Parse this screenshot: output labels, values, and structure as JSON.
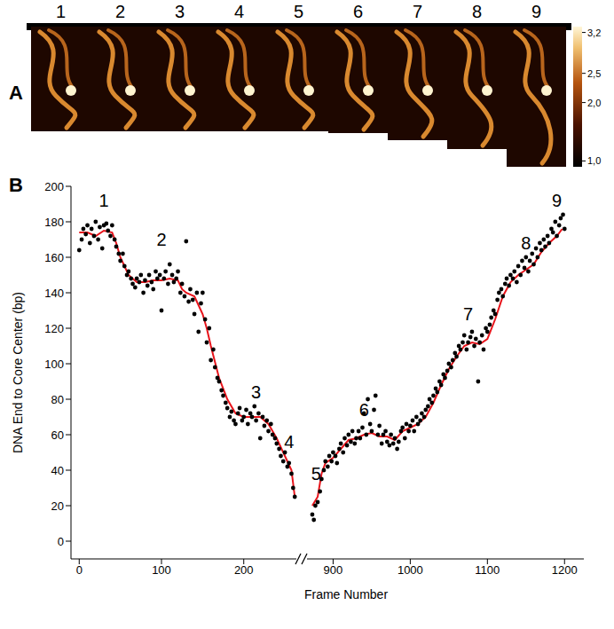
{
  "panel_a": {
    "label": "A",
    "frames": [
      "1",
      "2",
      "3",
      "4",
      "5",
      "6",
      "7",
      "8",
      "9"
    ],
    "colorbar": {
      "range": [
        0.9,
        3.3
      ],
      "ticks": [
        {
          "value": 3.2,
          "label": "3,2"
        },
        {
          "value": 2.5,
          "label": "2,5"
        },
        {
          "value": 2.0,
          "label": "2,0"
        },
        {
          "value": 1.0,
          "label": "1,0"
        }
      ]
    }
  },
  "panel_b_label": "B",
  "chart_data": [
    {
      "type": "scatter",
      "ylabel": "DNA End to Core Center (bp)",
      "xlim": [
        -10,
        265
      ],
      "xticks": [
        0,
        100,
        200
      ],
      "ylim": [
        -10,
        200
      ],
      "yticks": [
        0,
        20,
        40,
        60,
        80,
        100,
        120,
        140,
        160,
        180,
        200
      ],
      "series": [
        {
          "type": "scatter",
          "color": "#000000",
          "marker": "circle",
          "x": [
            0,
            3,
            5,
            8,
            10,
            13,
            15,
            18,
            20,
            23,
            25,
            28,
            30,
            33,
            35,
            38,
            40,
            43,
            45,
            48,
            50,
            53,
            55,
            58,
            60,
            63,
            65,
            68,
            70,
            73,
            75,
            78,
            80,
            83,
            85,
            88,
            90,
            93,
            95,
            98,
            100,
            103,
            105,
            108,
            110,
            113,
            115,
            118,
            120,
            123,
            125,
            128,
            130,
            133,
            135,
            138,
            140,
            143,
            145,
            148,
            150,
            153,
            155,
            158,
            160,
            163,
            165,
            168,
            170,
            173,
            175,
            178,
            180,
            183,
            185,
            188,
            190,
            193,
            195,
            198,
            200,
            203,
            205,
            208,
            210,
            213,
            215,
            218,
            220,
            223,
            225,
            228,
            230,
            233,
            235,
            238,
            240,
            243,
            245,
            248,
            250,
            253,
            255,
            258,
            260,
            262
          ],
          "values": [
            164,
            170,
            176,
            173,
            178,
            168,
            176,
            172,
            180,
            170,
            177,
            165,
            178,
            179,
            175,
            172,
            178,
            170,
            166,
            162,
            158,
            162,
            155,
            150,
            152,
            148,
            145,
            143,
            148,
            146,
            150,
            140,
            147,
            144,
            150,
            146,
            142,
            152,
            148,
            150,
            130,
            148,
            152,
            145,
            156,
            150,
            146,
            148,
            152,
            140,
            145,
            138,
            169,
            135,
            142,
            136,
            128,
            140,
            118,
            134,
            140,
            125,
            112,
            120,
            102,
            108,
            98,
            92,
            90,
            85,
            82,
            78,
            75,
            70,
            73,
            68,
            66,
            72,
            75,
            68,
            70,
            74,
            66,
            72,
            70,
            76,
            68,
            72,
            58,
            70,
            65,
            68,
            62,
            66,
            60,
            58,
            55,
            52,
            48,
            45,
            50,
            42,
            44,
            38,
            30,
            25
          ]
        },
        {
          "type": "line",
          "color": "#e8141b",
          "line_style": "solid",
          "x": [
            0,
            10,
            20,
            30,
            40,
            45,
            50,
            60,
            70,
            80,
            90,
            100,
            110,
            120,
            125,
            130,
            140,
            145,
            150,
            155,
            160,
            170,
            180,
            190,
            200,
            210,
            220,
            230,
            240,
            250,
            258,
            262
          ],
          "values": [
            174,
            174,
            172,
            175,
            174,
            168,
            160,
            150,
            146,
            146,
            147,
            147,
            148,
            147,
            142,
            140,
            138,
            133,
            128,
            120,
            110,
            92,
            80,
            72,
            70,
            70,
            70,
            66,
            58,
            48,
            40,
            25
          ]
        }
      ],
      "annotations": [
        {
          "x": 30,
          "y": 192,
          "text": "1"
        },
        {
          "x": 100,
          "y": 170,
          "text": "2"
        },
        {
          "x": 215,
          "y": 84,
          "text": "3"
        },
        {
          "x": 255,
          "y": 56,
          "text": "4"
        }
      ]
    },
    {
      "type": "scatter",
      "xlabel": "Frame Number",
      "xlim": [
        865,
        1225
      ],
      "xticks": [
        900,
        1000,
        1100,
        1200
      ],
      "ylim": [
        -10,
        200
      ],
      "tick_labels": "x",
      "series": [
        {
          "type": "scatter",
          "color": "#000000",
          "marker": "circle",
          "x": [
            873,
            875,
            877,
            880,
            883,
            885,
            888,
            890,
            893,
            895,
            898,
            900,
            903,
            905,
            908,
            910,
            913,
            915,
            918,
            920,
            923,
            925,
            928,
            930,
            933,
            935,
            938,
            940,
            943,
            945,
            948,
            950,
            953,
            955,
            958,
            960,
            963,
            965,
            968,
            970,
            973,
            975,
            978,
            980,
            983,
            985,
            988,
            990,
            993,
            995,
            998,
            1000,
            1003,
            1005,
            1008,
            1010,
            1013,
            1015,
            1018,
            1020,
            1023,
            1025,
            1028,
            1030,
            1033,
            1035,
            1038,
            1040,
            1043,
            1045,
            1048,
            1050,
            1053,
            1055,
            1058,
            1060,
            1063,
            1065,
            1068,
            1070,
            1073,
            1075,
            1078,
            1080,
            1083,
            1085,
            1088,
            1090,
            1093,
            1095,
            1098,
            1100,
            1103,
            1105,
            1108,
            1110,
            1113,
            1115,
            1118,
            1120,
            1123,
            1125,
            1128,
            1130,
            1133,
            1135,
            1138,
            1140,
            1143,
            1145,
            1148,
            1150,
            1153,
            1155,
            1158,
            1160,
            1163,
            1165,
            1168,
            1170,
            1173,
            1175,
            1178,
            1180,
            1183,
            1185,
            1188,
            1190,
            1193,
            1195,
            1198,
            1200
          ],
          "values": [
            15,
            12,
            20,
            22,
            28,
            35,
            40,
            45,
            42,
            48,
            45,
            50,
            48,
            44,
            52,
            55,
            50,
            58,
            54,
            60,
            56,
            62,
            55,
            58,
            62,
            58,
            64,
            72,
            60,
            80,
            66,
            62,
            74,
            82,
            60,
            65,
            55,
            60,
            62,
            56,
            54,
            60,
            55,
            58,
            52,
            56,
            62,
            64,
            58,
            66,
            62,
            65,
            68,
            62,
            70,
            66,
            68,
            72,
            70,
            74,
            76,
            80,
            78,
            82,
            86,
            84,
            90,
            88,
            94,
            92,
            96,
            100,
            98,
            102,
            106,
            104,
            110,
            108,
            112,
            116,
            108,
            112,
            115,
            118,
            110,
            114,
            90,
            112,
            116,
            108,
            120,
            118,
            122,
            126,
            130,
            128,
            136,
            140,
            142,
            138,
            145,
            148,
            144,
            150,
            148,
            152,
            146,
            155,
            150,
            158,
            154,
            160,
            152,
            158,
            162,
            156,
            165,
            160,
            168,
            164,
            170,
            166,
            172,
            168,
            176,
            174,
            180,
            172,
            178,
            182,
            184,
            176
          ]
        },
        {
          "type": "line",
          "color": "#e8141b",
          "line_style": "solid",
          "x": [
            873,
            880,
            885,
            890,
            900,
            910,
            920,
            930,
            940,
            950,
            960,
            970,
            980,
            990,
            1000,
            1010,
            1020,
            1030,
            1040,
            1050,
            1060,
            1070,
            1080,
            1090,
            1100,
            1110,
            1120,
            1130,
            1140,
            1150,
            1160,
            1170,
            1180,
            1190,
            1197
          ],
          "values": [
            20,
            25,
            38,
            44,
            47,
            52,
            57,
            58,
            60,
            61,
            59,
            59,
            57,
            62,
            64,
            66,
            70,
            78,
            88,
            97,
            104,
            110,
            112,
            111,
            114,
            125,
            138,
            146,
            150,
            153,
            156,
            163,
            168,
            172,
            176
          ]
        }
      ],
      "annotations": [
        {
          "x": 878,
          "y": 38,
          "text": "5"
        },
        {
          "x": 940,
          "y": 74,
          "text": "6"
        },
        {
          "x": 1075,
          "y": 128,
          "text": "7"
        },
        {
          "x": 1150,
          "y": 168,
          "text": "8"
        },
        {
          "x": 1190,
          "y": 192,
          "text": "9"
        }
      ]
    }
  ]
}
